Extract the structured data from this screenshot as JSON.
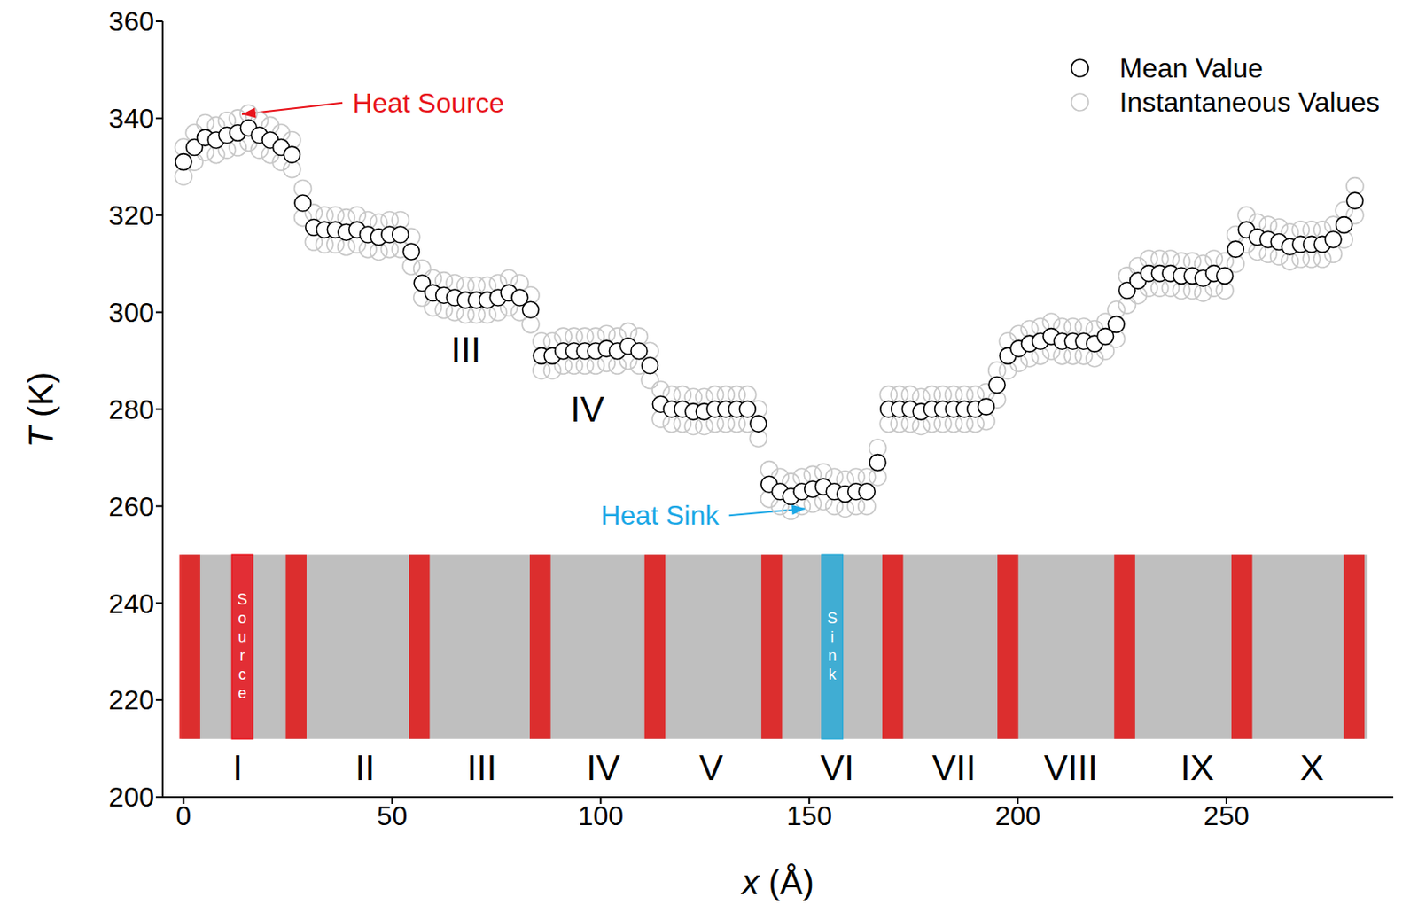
{
  "chart_data": {
    "type": "scatter",
    "xlabel": "x (Å)",
    "ylabel": "T (K)",
    "xlim": [
      -5,
      290
    ],
    "xticks": [
      0,
      50,
      100,
      150,
      200,
      250
    ],
    "ylim": [
      200,
      360
    ],
    "yticks": [
      200,
      220,
      240,
      260,
      280,
      300,
      320,
      340,
      360
    ],
    "grid": false,
    "legend": "top-right",
    "x": [
      0,
      2.6,
      5.2,
      7.8,
      10.4,
      13,
      15.6,
      18.2,
      20.8,
      23.4,
      26,
      28.6,
      31.2,
      33.8,
      36.4,
      39,
      41.6,
      44.2,
      46.8,
      49.4,
      52,
      54.6,
      57.2,
      59.8,
      62.4,
      65,
      67.6,
      70.2,
      72.8,
      75.4,
      78,
      80.6,
      83.2,
      85.8,
      88.4,
      91,
      93.6,
      96.2,
      98.8,
      101.4,
      104,
      106.6,
      109.2,
      111.8,
      114.4,
      117,
      119.6,
      122.2,
      124.8,
      127.4,
      130,
      132.6,
      135.2,
      137.8,
      140.4,
      143,
      145.6,
      148.2,
      150.8,
      153.4,
      156,
      158.6,
      161.2,
      163.8,
      166.4,
      169,
      171.6,
      174.2,
      176.8,
      179.4,
      182,
      184.6,
      187.2,
      189.8,
      192.4,
      195,
      197.6,
      200.2,
      202.8,
      205.4,
      208,
      210.6,
      213.2,
      215.8,
      218.4,
      221,
      223.6,
      226.2,
      228.8,
      231.4,
      234,
      236.6,
      239.2,
      241.8,
      244.4,
      247,
      249.6,
      252.2,
      254.8,
      257.4,
      260,
      262.6,
      265.2,
      267.8,
      270.4,
      273,
      275.6,
      278.2,
      280.8
    ],
    "series": [
      {
        "name": "Mean Value",
        "color": "#000000",
        "marker": "circle",
        "values": [
          331,
          334,
          336,
          335.5,
          336.5,
          337,
          338,
          336.5,
          335.5,
          334,
          332.5,
          322.5,
          317.5,
          317,
          317,
          316.5,
          317,
          316,
          315.5,
          316,
          316,
          312.5,
          306,
          304,
          303.5,
          303,
          302.5,
          302.5,
          302.5,
          303,
          304,
          303,
          300.5,
          291,
          291,
          292,
          292,
          292,
          292,
          292.5,
          292,
          293,
          292,
          289,
          281,
          280,
          280,
          279.5,
          279.5,
          280,
          280,
          280,
          280,
          277,
          264.5,
          263,
          262,
          263,
          263.5,
          264,
          263,
          262.5,
          263,
          263,
          269,
          280,
          280,
          280,
          279.5,
          280,
          280,
          280,
          280,
          280,
          280.5,
          285,
          291,
          292.5,
          293.5,
          294,
          295,
          294,
          294,
          294,
          293.5,
          295,
          297.5,
          304.5,
          306.5,
          308,
          308,
          308,
          307.5,
          307.5,
          307,
          308,
          307.5,
          313,
          317,
          315.5,
          315,
          314.5,
          313.5,
          314,
          314,
          314,
          315,
          318,
          323
        ]
      },
      {
        "name": "Instantaneous Values",
        "color": "#c8c8c8",
        "marker": "circle",
        "values": [
          [
            328,
            334
          ],
          [
            331,
            337
          ],
          [
            333,
            339
          ],
          [
            332.5,
            338.5
          ],
          [
            333.5,
            339.5
          ],
          [
            334,
            340
          ],
          [
            335,
            341
          ],
          [
            333.5,
            339.5
          ],
          [
            332.5,
            338.5
          ],
          [
            331,
            337
          ],
          [
            329.5,
            335.5
          ],
          [
            319.5,
            325.5
          ],
          [
            314.5,
            320.5
          ],
          [
            314,
            320
          ],
          [
            314,
            320
          ],
          [
            313.5,
            319.5
          ],
          [
            314,
            320
          ],
          [
            313,
            319
          ],
          [
            312.5,
            318.5
          ],
          [
            313,
            319
          ],
          [
            313,
            319
          ],
          [
            309.5,
            315.5
          ],
          [
            303,
            309
          ],
          [
            301,
            307
          ],
          [
            300.5,
            306.5
          ],
          [
            300,
            306
          ],
          [
            299.5,
            305.5
          ],
          [
            299.5,
            305.5
          ],
          [
            299.5,
            305.5
          ],
          [
            300,
            306
          ],
          [
            301,
            307
          ],
          [
            300,
            306
          ],
          [
            297.5,
            303.5
          ],
          [
            288,
            294
          ],
          [
            288,
            294
          ],
          [
            289,
            295
          ],
          [
            289,
            295
          ],
          [
            289,
            295
          ],
          [
            289,
            295
          ],
          [
            289.5,
            295.5
          ],
          [
            289,
            295
          ],
          [
            290,
            296
          ],
          [
            289,
            295
          ],
          [
            286,
            292
          ],
          [
            278,
            284
          ],
          [
            277,
            283
          ],
          [
            277,
            283
          ],
          [
            276.5,
            282.5
          ],
          [
            276.5,
            282.5
          ],
          [
            277,
            283
          ],
          [
            277,
            283
          ],
          [
            277,
            283
          ],
          [
            277,
            283
          ],
          [
            274,
            280
          ],
          [
            261.5,
            267.5
          ],
          [
            260,
            266
          ],
          [
            259,
            265
          ],
          [
            260,
            266
          ],
          [
            260.5,
            266.5
          ],
          [
            261,
            267
          ],
          [
            260,
            266
          ],
          [
            259.5,
            265.5
          ],
          [
            260,
            266
          ],
          [
            260,
            266
          ],
          [
            266,
            272
          ],
          [
            277,
            283
          ],
          [
            277,
            283
          ],
          [
            277,
            283
          ],
          [
            276.5,
            282.5
          ],
          [
            277,
            283
          ],
          [
            277,
            283
          ],
          [
            277,
            283
          ],
          [
            277,
            283
          ],
          [
            277,
            283
          ],
          [
            277.5,
            283.5
          ],
          [
            282,
            288
          ],
          [
            288,
            294
          ],
          [
            289.5,
            295.5
          ],
          [
            290.5,
            296.5
          ],
          [
            291,
            297
          ],
          [
            292,
            298
          ],
          [
            291,
            297
          ],
          [
            291,
            297
          ],
          [
            291,
            297
          ],
          [
            290.5,
            296.5
          ],
          [
            292,
            298
          ],
          [
            294.5,
            300.5
          ],
          [
            301.5,
            307.5
          ],
          [
            303.5,
            309.5
          ],
          [
            305,
            311
          ],
          [
            305,
            311
          ],
          [
            305,
            311
          ],
          [
            304.5,
            310.5
          ],
          [
            304.5,
            310.5
          ],
          [
            304,
            310
          ],
          [
            305,
            311
          ],
          [
            304.5,
            310.5
          ],
          [
            310,
            316
          ],
          [
            314,
            320
          ],
          [
            312.5,
            318.5
          ],
          [
            312,
            318
          ],
          [
            311.5,
            317.5
          ],
          [
            310.5,
            316.5
          ],
          [
            311,
            317
          ],
          [
            311,
            317
          ],
          [
            311,
            317
          ],
          [
            312,
            318
          ],
          [
            315,
            321
          ],
          [
            320,
            326
          ]
        ]
      }
    ],
    "annotations": [
      {
        "text": "Heat Source",
        "x": 38.1,
        "y": 343.2,
        "arrow_to": [
          14,
          340.8
        ],
        "color": "#e8141c"
      },
      {
        "text": "Heat Sink",
        "x": 130.8,
        "y": 258.1,
        "arrow_to": [
          149.1,
          259.5
        ],
        "color": "#1ca8e6"
      },
      {
        "text": "III",
        "x": 67.7,
        "y": 292.3,
        "color": "#000000"
      },
      {
        "text": "IV",
        "x": 96.8,
        "y": 280,
        "color": "#000000"
      }
    ],
    "structure": {
      "xlim": [
        -0.6,
        283.8
      ],
      "ylim": [
        212,
        250
      ],
      "color": "#b4b4b4",
      "boundary_color": "#e01414",
      "boundaries": [
        1.5,
        27,
        56.5,
        85.5,
        113,
        141,
        170,
        197.6,
        225.6,
        253.7,
        280.6
      ],
      "source": {
        "label": "Source",
        "x": [
          11.6,
          16.6
        ],
        "color": "#e8141c"
      },
      "sink": {
        "label": "Sink",
        "x": [
          153,
          158
        ],
        "color": "#29a9d6"
      },
      "label_y": 206,
      "regions": [
        {
          "label": "I",
          "x": 13
        },
        {
          "label": "II",
          "x": 43.5
        },
        {
          "label": "III",
          "x": 71.5
        },
        {
          "label": "IV",
          "x": 100.6
        },
        {
          "label": "V",
          "x": 126.5
        },
        {
          "label": "VI",
          "x": 156.7
        },
        {
          "label": "VII",
          "x": 184.7
        },
        {
          "label": "VIII",
          "x": 212.7
        },
        {
          "label": "IX",
          "x": 243
        },
        {
          "label": "X",
          "x": 270.5
        }
      ]
    }
  }
}
